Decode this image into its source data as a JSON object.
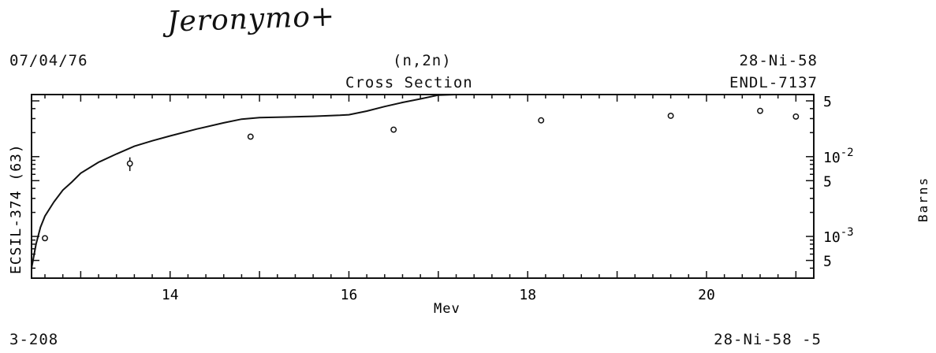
{
  "signature": "Jeronymo+",
  "header": {
    "date": "07/04/76",
    "reaction": "(n,2n)",
    "quantity": "Cross Section",
    "target": "28-Ni-58",
    "library": "ENDL-7137"
  },
  "footer": {
    "ref_left": "3-208",
    "ref_right": "28-Ni-58 -5"
  },
  "chart_data": {
    "type": "line",
    "xlabel": "Mev",
    "ylabel_left": "ECSIL-374 (63)",
    "ylabel_right": "Barns",
    "xlim": [
      12.45,
      21.2
    ],
    "ylim": [
      0.0003,
      0.06
    ],
    "log_y": true,
    "x_ticks": [
      14,
      16,
      18,
      20
    ],
    "x_tick_labels": [
      "14",
      "16",
      "18",
      "20"
    ],
    "y_tick_labels": [
      {
        "value": 0.05,
        "label": "5"
      },
      {
        "value": 0.01,
        "label": "10",
        "exp": "-2"
      },
      {
        "value": 0.005,
        "label": "5"
      },
      {
        "value": 0.001,
        "label": "10",
        "exp": "-3"
      },
      {
        "value": 0.0005,
        "label": "5"
      }
    ],
    "series": [
      {
        "kind": "evaluated-curve",
        "x": [
          12.45,
          12.5,
          12.55,
          12.6,
          12.7,
          12.8,
          12.9,
          13.0,
          13.2,
          13.4,
          13.6,
          13.8,
          14.0,
          14.3,
          14.6,
          14.8,
          15.0,
          15.3,
          15.6,
          15.9,
          16.0,
          16.2,
          16.4,
          16.6,
          16.8,
          17.0,
          17.2
        ],
        "y": [
          0.0004,
          0.0008,
          0.0013,
          0.0018,
          0.0027,
          0.0038,
          0.0048,
          0.0062,
          0.0085,
          0.0108,
          0.0135,
          0.0158,
          0.0182,
          0.0222,
          0.0265,
          0.0295,
          0.0308,
          0.0314,
          0.032,
          0.033,
          0.0335,
          0.0372,
          0.0425,
          0.0478,
          0.053,
          0.059,
          0.066
        ]
      },
      {
        "kind": "experimental-points",
        "points": [
          {
            "x": 12.6,
            "y": 0.00095,
            "err": 4e-05
          },
          {
            "x": 13.55,
            "y": 0.0082,
            "err": 0.0016
          },
          {
            "x": 14.9,
            "y": 0.0178,
            "err": 0.0013
          },
          {
            "x": 16.5,
            "y": 0.0218,
            "err": 0.0011
          },
          {
            "x": 18.15,
            "y": 0.0285,
            "err": 0.0006
          },
          {
            "x": 19.6,
            "y": 0.0325,
            "err": 0.0006
          },
          {
            "x": 20.6,
            "y": 0.0375,
            "err": 0.0006
          },
          {
            "x": 21.0,
            "y": 0.0318,
            "err": 0.0006
          }
        ]
      }
    ]
  }
}
